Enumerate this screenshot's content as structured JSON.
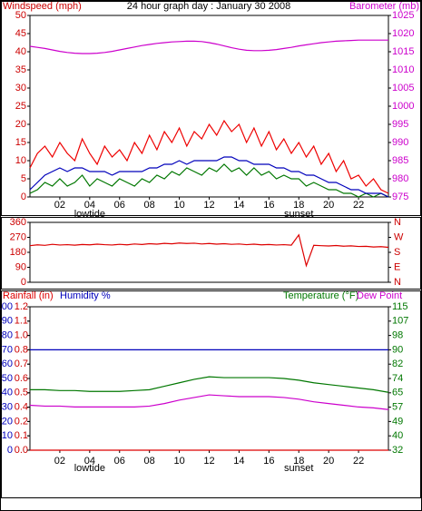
{
  "chart_data": [
    {
      "type": "line",
      "title": "24 hour graph day : January 30 2008",
      "ylabel": "Windspeed (mph)",
      "y2label": "Barometer (mb)",
      "axis_colors": {
        "y": "#cc0000",
        "y2": "#cc00cc"
      },
      "xlim": [
        0,
        24
      ],
      "xticks": [
        {
          "value": 2,
          "label": "02"
        },
        {
          "value": 4,
          "label": "04"
        },
        {
          "value": 6,
          "label": "06"
        },
        {
          "value": 8,
          "label": "08"
        },
        {
          "value": 10,
          "label": "10"
        },
        {
          "value": 12,
          "label": "12"
        },
        {
          "value": 14,
          "label": "14"
        },
        {
          "value": 16,
          "label": "16"
        },
        {
          "value": 18,
          "label": "18"
        },
        {
          "value": 20,
          "label": "20"
        },
        {
          "value": 22,
          "label": "22"
        }
      ],
      "x_annotations": [
        {
          "x": 4,
          "text": "lowtide"
        },
        {
          "x": 18,
          "text": "sunset"
        }
      ],
      "ylim": [
        0,
        50
      ],
      "yticks": [
        0,
        5,
        10,
        15,
        20,
        25,
        30,
        35,
        40,
        45,
        50
      ],
      "y2lim": [
        975,
        1025
      ],
      "y2ticks": [
        975,
        980,
        985,
        990,
        995,
        1000,
        1005,
        1010,
        1015,
        1020,
        1025
      ],
      "x": [
        0,
        0.5,
        1,
        1.5,
        2,
        2.5,
        3,
        3.5,
        4,
        4.5,
        5,
        5.5,
        6,
        6.5,
        7,
        7.5,
        8,
        8.5,
        9,
        9.5,
        10,
        10.5,
        11,
        11.5,
        12,
        12.5,
        13,
        13.5,
        14,
        14.5,
        15,
        15.5,
        16,
        16.5,
        17,
        17.5,
        18,
        18.5,
        19,
        19.5,
        20,
        20.5,
        21,
        21.5,
        22,
        22.5,
        23,
        23.5,
        24
      ],
      "series": [
        {
          "color": "#ee0000",
          "values": [
            8,
            12,
            14,
            11,
            15,
            12,
            10,
            16,
            12,
            9,
            14,
            11,
            13,
            10,
            15,
            12,
            17,
            13,
            18,
            15,
            19,
            14,
            18,
            16,
            20,
            17,
            21,
            18,
            20,
            15,
            19,
            14,
            18,
            13,
            16,
            12,
            15,
            11,
            14,
            9,
            12,
            7,
            10,
            5,
            6,
            3,
            5,
            2,
            1
          ]
        },
        {
          "color": "#007700",
          "values": [
            1,
            2,
            4,
            3,
            5,
            3,
            4,
            6,
            3,
            5,
            4,
            3,
            5,
            4,
            3,
            5,
            4,
            6,
            5,
            7,
            6,
            8,
            7,
            6,
            8,
            7,
            9,
            7,
            8,
            6,
            8,
            6,
            7,
            5,
            6,
            5,
            5,
            3,
            4,
            3,
            2,
            2,
            1,
            1,
            0,
            1,
            0,
            1,
            0
          ]
        },
        {
          "color": "#0000bb",
          "values": [
            2,
            4,
            6,
            7,
            8,
            7,
            8,
            8,
            7,
            7,
            7,
            6,
            7,
            7,
            7,
            7,
            8,
            8,
            9,
            9,
            10,
            9,
            10,
            10,
            10,
            10,
            11,
            11,
            10,
            10,
            9,
            9,
            9,
            8,
            8,
            7,
            7,
            6,
            6,
            5,
            4,
            4,
            3,
            2,
            2,
            1,
            1,
            1,
            0
          ]
        },
        {
          "color": "#cc00cc",
          "axis": "y2",
          "values": [
            1016.5,
            1016.2,
            1015.9,
            1015.5,
            1015.1,
            1014.8,
            1014.6,
            1014.5,
            1014.5,
            1014.6,
            1014.8,
            1015.1,
            1015.5,
            1015.9,
            1016.3,
            1016.7,
            1017.0,
            1017.3,
            1017.5,
            1017.7,
            1017.8,
            1017.9,
            1017.9,
            1017.8,
            1017.5,
            1017.1,
            1016.6,
            1016.1,
            1015.7,
            1015.4,
            1015.3,
            1015.3,
            1015.4,
            1015.6,
            1015.9,
            1016.2,
            1016.6,
            1016.9,
            1017.2,
            1017.5,
            1017.7,
            1017.9,
            1018.0,
            1018.1,
            1018.2,
            1018.2,
            1018.2,
            1018.2,
            1018.2
          ]
        }
      ]
    },
    {
      "type": "line",
      "axis_colors": {
        "y": "#cc0000",
        "y2": "#cc0000"
      },
      "xlim": [
        0,
        24
      ],
      "ylim": [
        0,
        360
      ],
      "yticks": [
        0,
        90,
        180,
        270,
        360
      ],
      "y2lim": [
        0,
        360
      ],
      "y2ticks": [
        {
          "value": 0,
          "label": "N"
        },
        {
          "value": 90,
          "label": "E"
        },
        {
          "value": 180,
          "label": "S"
        },
        {
          "value": 270,
          "label": "W"
        },
        {
          "value": 360,
          "label": "N"
        }
      ],
      "x": [
        0,
        0.5,
        1,
        1.5,
        2,
        2.5,
        3,
        3.5,
        4,
        4.5,
        5,
        5.5,
        6,
        6.5,
        7,
        7.5,
        8,
        8.5,
        9,
        9.5,
        10,
        10.5,
        11,
        11.5,
        12,
        12.5,
        13,
        13.5,
        14,
        14.5,
        15,
        15.5,
        16,
        16.5,
        17,
        17.5,
        18,
        18.5,
        19,
        19.5,
        20,
        20.5,
        21,
        21.5,
        22,
        22.5,
        23,
        23.5,
        24
      ],
      "series": [
        {
          "color": "#dd0000",
          "values": [
            220,
            225,
            222,
            228,
            224,
            226,
            223,
            227,
            225,
            229,
            226,
            224,
            228,
            225,
            230,
            227,
            232,
            229,
            234,
            231,
            236,
            233,
            235,
            230,
            233,
            229,
            232,
            228,
            230,
            226,
            229,
            225,
            227,
            224,
            226,
            223,
            285,
            100,
            222,
            220,
            218,
            221,
            217,
            219,
            215,
            216,
            212,
            214,
            210
          ]
        }
      ]
    },
    {
      "type": "line",
      "axis_colors": {
        "y": "#0000bb",
        "y2": "#007700",
        "y3": "#cc0000"
      },
      "xlim": [
        0,
        24
      ],
      "xticks": [
        {
          "value": 2,
          "label": "02"
        },
        {
          "value": 4,
          "label": "04"
        },
        {
          "value": 6,
          "label": "06"
        },
        {
          "value": 8,
          "label": "08"
        },
        {
          "value": 10,
          "label": "10"
        },
        {
          "value": 12,
          "label": "12"
        },
        {
          "value": 14,
          "label": "14"
        },
        {
          "value": 16,
          "label": "16"
        },
        {
          "value": 18,
          "label": "18"
        },
        {
          "value": 20,
          "label": "20"
        },
        {
          "value": 22,
          "label": "22"
        }
      ],
      "x_annotations": [
        {
          "x": 4,
          "text": "lowtide"
        },
        {
          "x": 18,
          "text": "sunset"
        }
      ],
      "ylim": [
        0,
        100
      ],
      "yticks": [
        0,
        10,
        20,
        30,
        40,
        50,
        60,
        70,
        80,
        90,
        100
      ],
      "y3lim": [
        0,
        1.2
      ],
      "y3ticks": [
        {
          "value": 0,
          "label": "0.0"
        },
        {
          "value": 0.12,
          "label": "0.1"
        },
        {
          "value": 0.24,
          "label": "0.2"
        },
        {
          "value": 0.36,
          "label": "0.4"
        },
        {
          "value": 0.48,
          "label": "0.5"
        },
        {
          "value": 0.6,
          "label": "0.6"
        },
        {
          "value": 0.72,
          "label": "0.7"
        },
        {
          "value": 0.84,
          "label": "0.8"
        },
        {
          "value": 0.96,
          "label": "1.0"
        },
        {
          "value": 1.08,
          "label": "1.1"
        },
        1.2
      ],
      "y2lim": [
        32,
        115
      ],
      "y2ticks": [
        {
          "value": 32,
          "label": "32"
        },
        {
          "value": 40.3,
          "label": "40"
        },
        {
          "value": 48.6,
          "label": "49"
        },
        {
          "value": 56.9,
          "label": "57"
        },
        {
          "value": 65.2,
          "label": "65"
        },
        {
          "value": 73.5,
          "label": "74"
        },
        {
          "value": 81.8,
          "label": "82"
        },
        {
          "value": 90.1,
          "label": "90"
        },
        {
          "value": 98.4,
          "label": "98"
        },
        {
          "value": 106.7,
          "label": "107"
        },
        {
          "value": 115,
          "label": "115"
        }
      ],
      "x": [
        0,
        1,
        2,
        3,
        4,
        5,
        6,
        7,
        8,
        9,
        10,
        11,
        12,
        13,
        14,
        15,
        16,
        17,
        18,
        19,
        20,
        21,
        22,
        23,
        24
      ],
      "series": [
        {
          "name": "Rainfall (in)",
          "color": "#dd0000",
          "axis": "y3",
          "values": [
            0,
            0,
            0,
            0,
            0,
            0,
            0,
            0,
            0,
            0,
            0,
            0,
            0,
            0,
            0,
            0,
            0,
            0,
            0,
            0,
            0,
            0,
            0,
            0,
            0
          ]
        },
        {
          "name": "Humidity %",
          "color": "#0000bb",
          "values": [
            70,
            70,
            70,
            70,
            70,
            70,
            70,
            70,
            70,
            70,
            70,
            70,
            70,
            70,
            70,
            70,
            70,
            70,
            70,
            70,
            70,
            70,
            70,
            70,
            70
          ]
        },
        {
          "name": "Temperature (°F)",
          "color": "#007700",
          "axis": "y2",
          "values": [
            67,
            67,
            66.5,
            66.5,
            66,
            66,
            66,
            66.5,
            67,
            69,
            71,
            73,
            74.5,
            74,
            74,
            74,
            74,
            73.5,
            72.5,
            71,
            70,
            69,
            68,
            67,
            65.5
          ]
        },
        {
          "name": "Dew Point",
          "color": "#cc00cc",
          "axis": "y2",
          "values": [
            58,
            57.5,
            57.5,
            57,
            57,
            57,
            57,
            57,
            57.5,
            59,
            61,
            62.5,
            64,
            63.5,
            63,
            63,
            63,
            62.5,
            61.5,
            60,
            59,
            58,
            57,
            56.5,
            55.5
          ]
        }
      ]
    }
  ]
}
